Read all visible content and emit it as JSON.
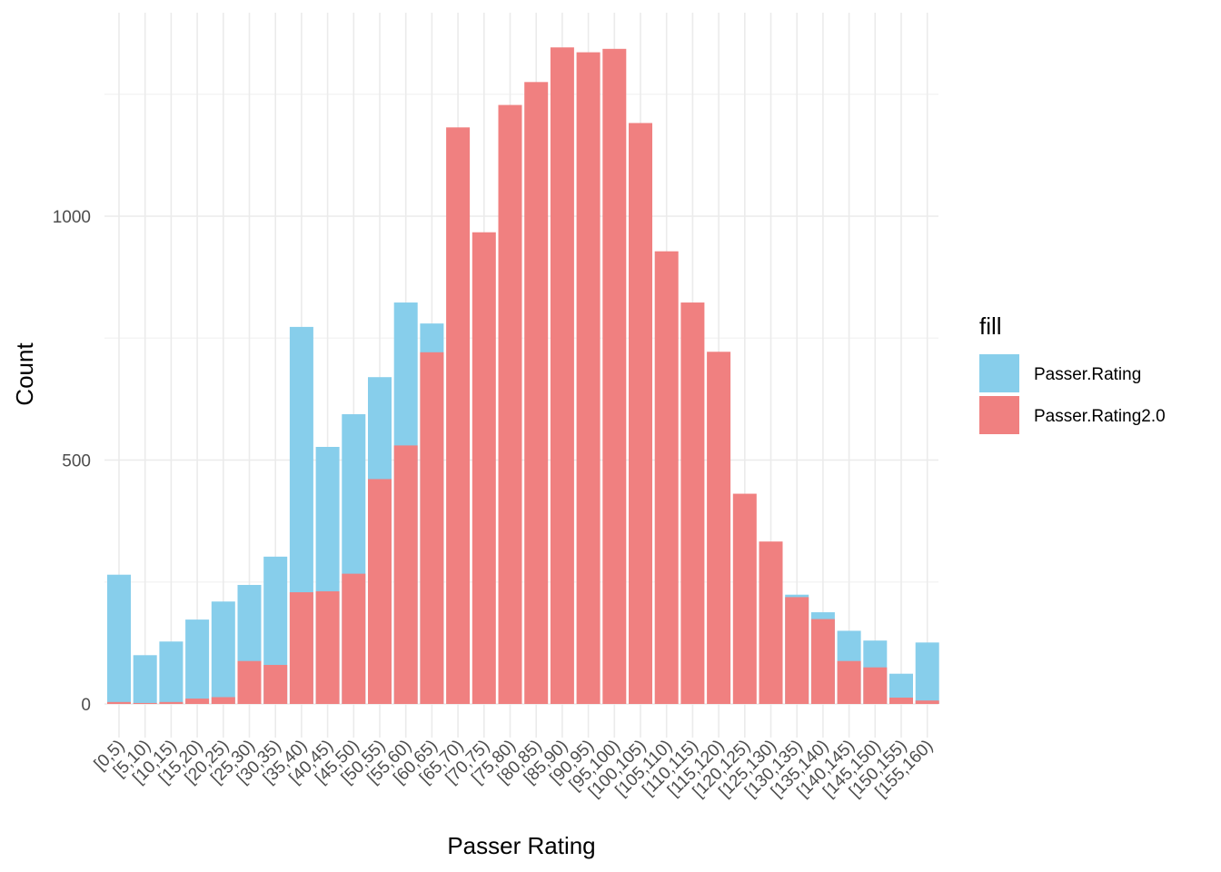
{
  "chart_data": {
    "type": "bar",
    "xlabel": "Passer Rating",
    "ylabel": "Count",
    "ylim": [
      -30,
      1370
    ],
    "yticks": [
      0,
      500,
      1000
    ],
    "grid": true,
    "legend": {
      "title": "fill",
      "position": "right"
    },
    "categories": [
      "[0,5)",
      "[5,10)",
      "[10,15)",
      "[15,20)",
      "[20,25)",
      "[25,30)",
      "[30,35)",
      "[35,40)",
      "[40,45)",
      "[45,50)",
      "[50,55)",
      "[55,60)",
      "[60,65)",
      "[65,70)",
      "[70,75)",
      "[75,80)",
      "[80,85)",
      "[85,90)",
      "[90,95)",
      "[95,100)",
      "[100,105)",
      "[105,110)",
      "[110,115)",
      "[115,120)",
      "[120,125)",
      "[125,130)",
      "[130,135)",
      "[135,140)",
      "[140,145)",
      "[145,150)",
      "[150,155)",
      "[155,160)"
    ],
    "series": [
      {
        "name": "Passer.Rating",
        "color": "#87ceeb",
        "values": [
          265,
          100,
          128,
          173,
          210,
          244,
          302,
          773,
          527,
          594,
          670,
          823,
          780,
          0,
          0,
          0,
          0,
          0,
          0,
          0,
          0,
          0,
          0,
          0,
          0,
          0,
          224,
          188,
          150,
          130,
          62,
          126
        ]
      },
      {
        "name": "Passer.Rating2.0",
        "color": "#f08080",
        "values": [
          4,
          2,
          4,
          11,
          14,
          88,
          80,
          229,
          231,
          267,
          461,
          530,
          721,
          1182,
          967,
          1228,
          1275,
          1346,
          1336,
          1343,
          1191,
          928,
          823,
          722,
          431,
          333,
          219,
          174,
          88,
          75,
          13,
          7
        ]
      }
    ]
  }
}
